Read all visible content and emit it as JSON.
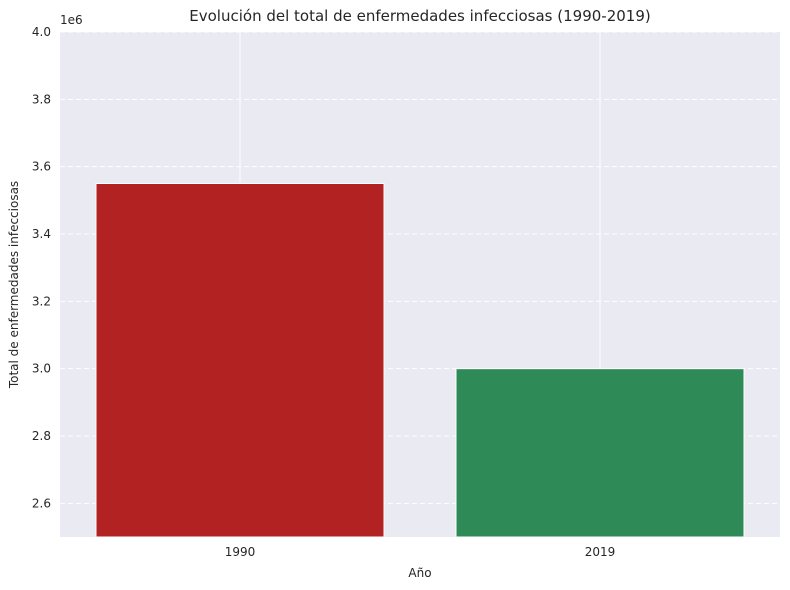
{
  "chart_data": {
    "type": "bar",
    "title": "Evolución del total de enfermedades infecciosas (1990-2019)",
    "xlabel": "Año",
    "ylabel": "Total de enfermedades infecciosas",
    "y_offset_label": "1e6",
    "categories": [
      "1990",
      "2019"
    ],
    "values": [
      3550000,
      3000000
    ],
    "colors": [
      "#b22222",
      "#2e8b57"
    ],
    "ylim": [
      2500000,
      4000000
    ],
    "yticks": [
      2.6,
      2.8,
      3.0,
      3.2,
      3.4,
      3.6,
      3.8,
      4.0
    ],
    "ytick_labels": [
      "2.6",
      "2.8",
      "3.0",
      "3.2",
      "3.4",
      "3.6",
      "3.8",
      "4.0"
    ],
    "grid": true,
    "background": "#eaeaf2"
  }
}
